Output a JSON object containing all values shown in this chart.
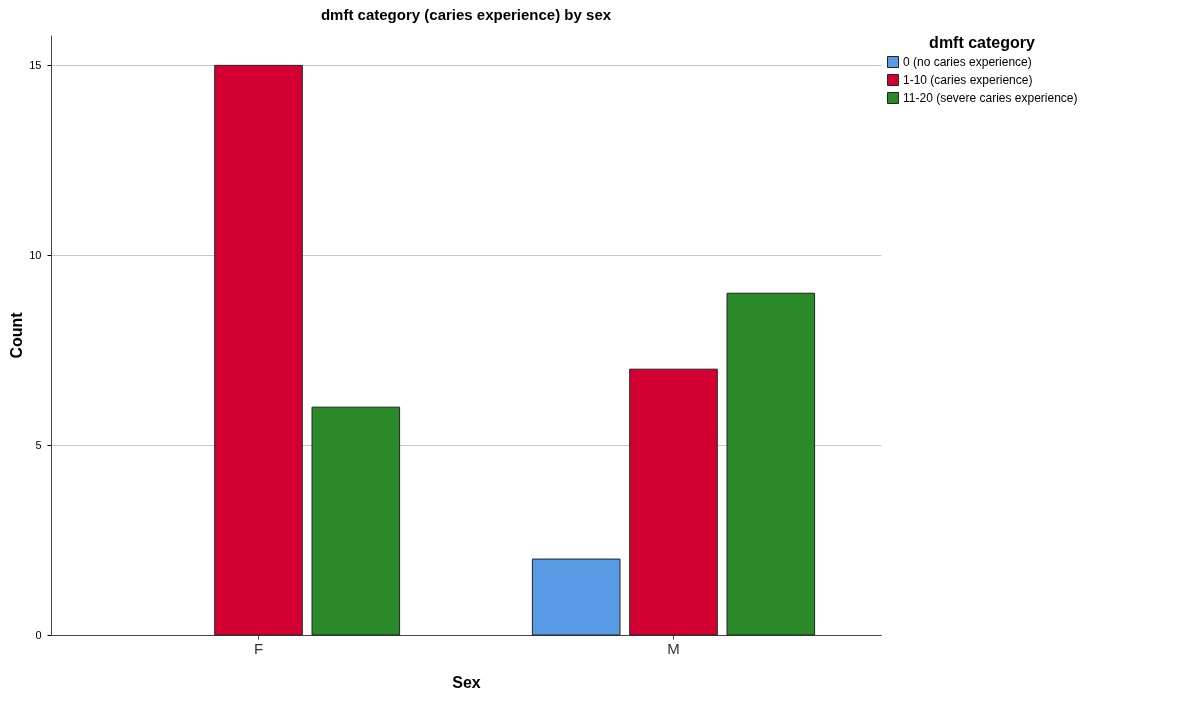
{
  "chart_data": {
    "type": "bar",
    "title": "dmft category (caries experience) by sex",
    "xlabel": "Sex",
    "ylabel": "Count",
    "legend_title": "dmft category",
    "categories": [
      "F",
      "M"
    ],
    "series": [
      {
        "name": "0 (no caries experience)",
        "color": "#5a9be6",
        "values": [
          null,
          2
        ]
      },
      {
        "name": "1-10 (caries experience)",
        "color": "#d50032",
        "values": [
          15,
          7
        ]
      },
      {
        "name": "11-20 (severe caries experience)",
        "color": "#2a8a2a",
        "values": [
          6,
          9
        ]
      }
    ],
    "ylim": [
      0,
      15.8
    ],
    "yticks": [
      0,
      5,
      10,
      15
    ],
    "grid": "y",
    "legend": "top right"
  }
}
